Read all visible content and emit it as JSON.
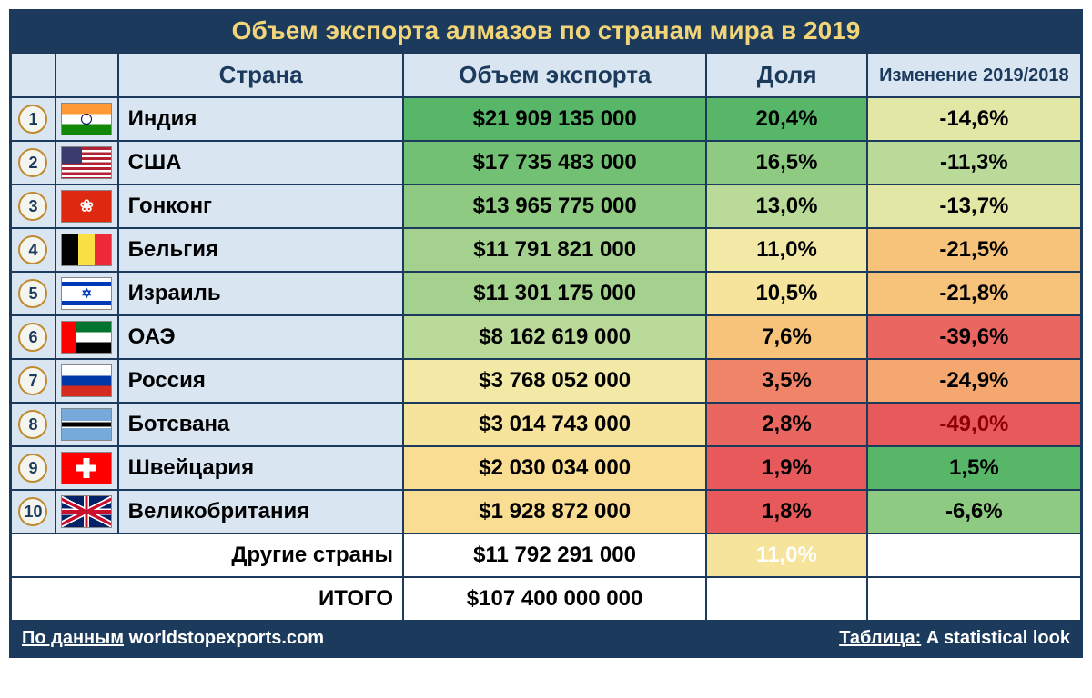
{
  "title": "Объем экспорта алмазов по странам мира в 2019",
  "columns": {
    "country": "Страна",
    "export": "Объем экспорта",
    "share": "Доля",
    "change": "Изменение 2019/2018"
  },
  "colors": {
    "header_bg": "#1b3a5c",
    "header_text": "#f2d479",
    "subheader_bg": "#d9e6f2",
    "subheader_text": "#1b3a5c",
    "border": "#1b3a5c",
    "heat_green1": "#57b668",
    "heat_green2": "#72c074",
    "heat_green3": "#8fca82",
    "heat_green4": "#a4d18e",
    "heat_green5": "#bada9a",
    "heat_yellow1": "#e3e7a6",
    "heat_yellow2": "#f2e9a6",
    "heat_yellow3": "#f6e39c",
    "heat_yellow4": "#f9dd92",
    "heat_orange1": "#f7c27a",
    "heat_orange2": "#f4a870",
    "heat_red1": "#ef8468",
    "heat_red2": "#ea6661",
    "heat_red3": "#e8595b",
    "white": "#ffffff",
    "pale_share": "#f6e39c",
    "pale_share_text": "#ffffff"
  },
  "rows": [
    {
      "rank": "1",
      "flag": "india",
      "country": "Индия",
      "export": "$21 909 135 000",
      "export_bg": "#57b668",
      "share": "20,4%",
      "share_bg": "#57b668",
      "change": "-14,6%",
      "change_bg": "#e3e7a6"
    },
    {
      "rank": "2",
      "flag": "usa",
      "country": "США",
      "export": "$17 735 483 000",
      "export_bg": "#72c074",
      "share": "16,5%",
      "share_bg": "#8fca82",
      "change": "-11,3%",
      "change_bg": "#bada9a"
    },
    {
      "rank": "3",
      "flag": "hongkong",
      "country": "Гонконг",
      "export": "$13 965 775 000",
      "export_bg": "#8fca82",
      "share": "13,0%",
      "share_bg": "#bada9a",
      "change": "-13,7%",
      "change_bg": "#e3e7a6"
    },
    {
      "rank": "4",
      "flag": "belgium",
      "country": "Бельгия",
      "export": "$11 791 821 000",
      "export_bg": "#a4d18e",
      "share": "11,0%",
      "share_bg": "#f2e9a6",
      "change": "-21,5%",
      "change_bg": "#f7c27a"
    },
    {
      "rank": "5",
      "flag": "israel",
      "country": "Израиль",
      "export": "$11 301 175 000",
      "export_bg": "#a4d18e",
      "share": "10,5%",
      "share_bg": "#f6e39c",
      "change": "-21,8%",
      "change_bg": "#f7c27a"
    },
    {
      "rank": "6",
      "flag": "uae",
      "country": "ОАЭ",
      "export": "$8 162 619 000",
      "export_bg": "#bada9a",
      "share": "7,6%",
      "share_bg": "#f7c27a",
      "change": "-39,6%",
      "change_bg": "#ea6661"
    },
    {
      "rank": "7",
      "flag": "russia",
      "country": "Россия",
      "export": "$3 768 052 000",
      "export_bg": "#f2e9a6",
      "share": "3,5%",
      "share_bg": "#ef8468",
      "change": "-24,9%",
      "change_bg": "#f4a870"
    },
    {
      "rank": "8",
      "flag": "botswana",
      "country": "Ботсвана",
      "export": "$3 014 743 000",
      "export_bg": "#f6e39c",
      "share": "2,8%",
      "share_bg": "#ea6661",
      "change": "-49,0%",
      "change_bg": "#e8595b",
      "change_bold_red": true
    },
    {
      "rank": "9",
      "flag": "switzerland",
      "country": "Швейцария",
      "export": "$2 030 034 000",
      "export_bg": "#f9dd92",
      "share": "1,9%",
      "share_bg": "#e8595b",
      "change": "1,5%",
      "change_bg": "#57b668"
    },
    {
      "rank": "10",
      "flag": "uk",
      "country": "Великобритания",
      "export": "$1 928 872 000",
      "export_bg": "#f9dd92",
      "share": "1,8%",
      "share_bg": "#e8595b",
      "change": "-6,6%",
      "change_bg": "#8fca82"
    }
  ],
  "summary": {
    "other_label": "Другие страны",
    "other_export": "$11 792 291 000",
    "other_share": "11,0%",
    "other_share_bg": "#f6e39c",
    "other_share_color": "#ffffff",
    "total_label": "ИТОГО",
    "total_export": "$107 400 000 000"
  },
  "footer": {
    "source_prefix": "По данным",
    "source": "worldstopexports.com",
    "credit_prefix": "Таблица:",
    "credit": "A statistical look"
  },
  "typography": {
    "title_fontsize": 28,
    "header_fontsize": 26,
    "cell_fontsize": 24,
    "footer_fontsize": 20,
    "font_family": "Arial"
  }
}
